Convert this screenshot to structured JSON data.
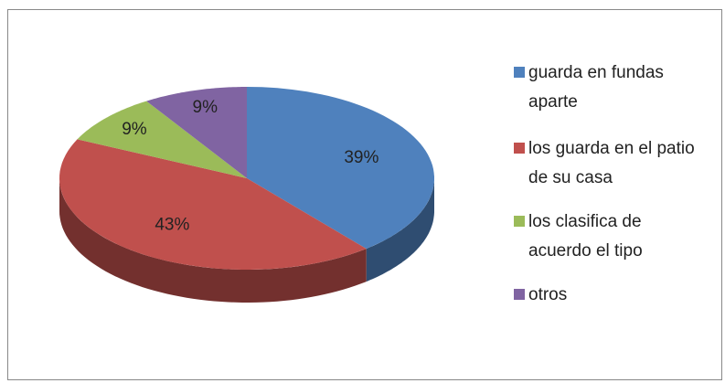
{
  "chart_data": {
    "type": "pie",
    "categories": [
      "guarda en fundas aparte",
      "los guarda en el patio de su casa",
      "los clasifica de acuerdo el tipo",
      "otros"
    ],
    "values": [
      39,
      43,
      9,
      9
    ],
    "value_labels": [
      "39%",
      "43%",
      "9%",
      "9%"
    ],
    "colors": [
      "#4f81bd",
      "#c0504d",
      "#9bbb59",
      "#8064a2"
    ],
    "legend": "right"
  }
}
